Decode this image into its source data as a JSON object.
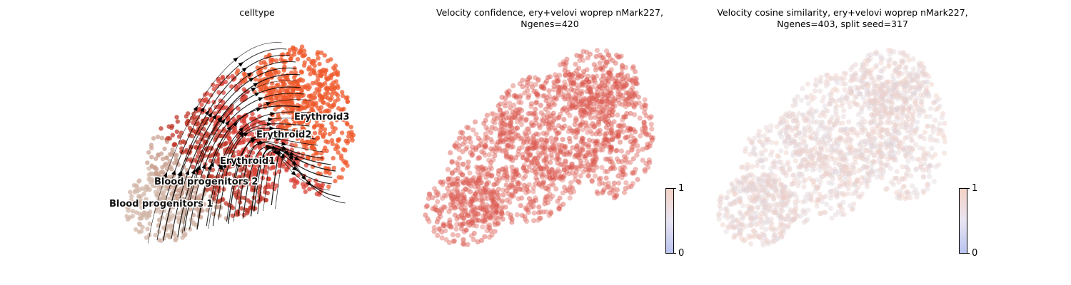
{
  "panels": [
    {
      "title": "celltype"
    },
    {
      "title": "Velocity confidence, ery+velovi woprep nMark227,\nNgenes=420"
    },
    {
      "title": "Velocity cosine similarity, ery+velovi woprep nMark227,\nNgenes=403, split seed=317"
    }
  ],
  "colorbar": {
    "min_label": "0",
    "max_label": "1"
  },
  "chart_data": [
    {
      "type": "scatter",
      "title": "celltype",
      "subtype": "embedding with velocity streamlines",
      "legend": "on data",
      "grid": false,
      "cell_types": [
        {
          "name": "Blood progenitors 1",
          "color": "#d2b7a8"
        },
        {
          "name": "Blood progenitors 2",
          "color": "#c9a292"
        },
        {
          "name": "Erythroid1",
          "color": "#c0392b"
        },
        {
          "name": "Erythroid2",
          "color": "#d9443a"
        },
        {
          "name": "Erythroid3",
          "color": "#ef5a2c"
        }
      ]
    },
    {
      "type": "scatter",
      "title": "Velocity confidence, ery+velovi woprep nMark227, Ngenes=420",
      "colorbar": {
        "min": 0,
        "max": 1,
        "ticks": [
          "0",
          "1"
        ]
      },
      "point_color": "#d5433a",
      "grid": false
    },
    {
      "type": "scatter",
      "title": "Velocity cosine similarity, ery+velovi woprep nMark227, Ngenes=403, split seed=317",
      "colorbar": {
        "min": 0,
        "max": 1,
        "ticks": [
          "0",
          "1"
        ]
      },
      "point_color": "#f1d6cb",
      "grid": false
    }
  ]
}
